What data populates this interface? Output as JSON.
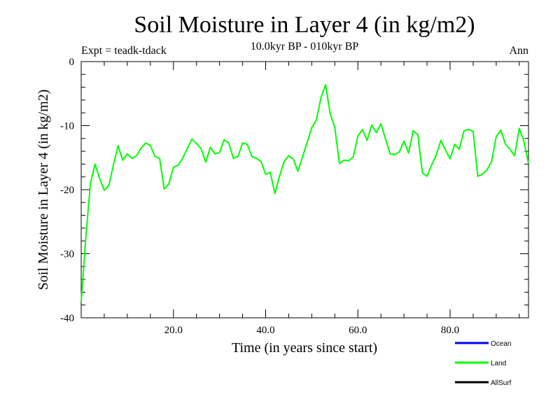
{
  "chart_data": {
    "type": "line",
    "title": "Soil Moisture in Layer 4 (in kg/m2)",
    "subtitle": "10.0kyr BP - 010kyr BP",
    "experiment_label": "Expt = teadk-tdack",
    "season_label": "Ann",
    "xlabel": "Time (in years since start)",
    "ylabel": "Soil Moisture in Layer 4 (in kg/m2)",
    "xlim": [
      0,
      97
    ],
    "ylim": [
      -40,
      0
    ],
    "x_ticks": [
      20,
      40,
      60,
      80
    ],
    "x_tick_labels": [
      "20.0",
      "40.0",
      "60.0",
      "80.0"
    ],
    "y_ticks": [
      -40,
      -30,
      -20,
      -10,
      0
    ],
    "y_tick_labels": [
      "-40",
      "-30",
      "-20",
      "-10",
      "0"
    ],
    "legend": [
      {
        "name": "Ocean",
        "color": "#0000ff"
      },
      {
        "name": "Land",
        "color": "#00ff00"
      },
      {
        "name": "AllSurf",
        "color": "#000000"
      }
    ],
    "series": [
      {
        "name": "Land",
        "color": "#00ff00",
        "x": [
          0,
          1,
          2,
          3,
          4,
          5,
          6,
          7,
          8,
          9,
          10,
          11,
          12,
          13,
          14,
          15,
          16,
          17,
          18,
          19,
          20,
          21,
          22,
          23,
          24,
          25,
          26,
          27,
          28,
          29,
          30,
          31,
          32,
          33,
          34,
          35,
          36,
          37,
          38,
          39,
          40,
          41,
          42,
          43,
          44,
          45,
          46,
          47,
          48,
          49,
          50,
          51,
          52,
          53,
          54,
          55,
          56,
          57,
          58,
          59,
          60,
          61,
          62,
          63,
          64,
          65,
          66,
          67,
          68,
          69,
          70,
          71,
          72,
          73,
          74,
          75,
          76,
          77,
          78,
          79,
          80,
          81,
          82,
          83,
          84,
          85,
          86,
          87,
          88,
          89,
          90,
          91,
          92,
          93,
          94,
          95,
          96,
          97
        ],
        "values": [
          -37.5,
          -27.5,
          -19,
          -16,
          -18.3,
          -20.1,
          -19.3,
          -16.1,
          -13.1,
          -15.4,
          -14.4,
          -15.1,
          -14.7,
          -13.5,
          -12.7,
          -13.1,
          -14.8,
          -15.1,
          -19.9,
          -19.1,
          -16.5,
          -16.2,
          -15.1,
          -13.6,
          -12.1,
          -12.8,
          -13.6,
          -15.7,
          -13.4,
          -14.4,
          -14.2,
          -12.2,
          -12.7,
          -15.1,
          -14.8,
          -12.7,
          -12.9,
          -14.8,
          -15.1,
          -15.6,
          -17.6,
          -17.3,
          -20.6,
          -17.9,
          -15.6,
          -14.7,
          -15.2,
          -17.1,
          -14.9,
          -12.6,
          -10.3,
          -9.1,
          -5.6,
          -3.6,
          -8.1,
          -10.3,
          -15.9,
          -15.4,
          -15.5,
          -14.9,
          -11.6,
          -10.6,
          -12.3,
          -9.9,
          -11.1,
          -9.7,
          -12.1,
          -14.4,
          -14.5,
          -14.1,
          -12.4,
          -14.3,
          -10.8,
          -11.4,
          -17.4,
          -17.9,
          -16.1,
          -14.6,
          -12.3,
          -13.8,
          -15.2,
          -12.9,
          -13.7,
          -10.8,
          -10.6,
          -10.9,
          -17.9,
          -17.6,
          -16.9,
          -15.6,
          -11.7,
          -10.7,
          -12.9,
          -13.7,
          -14.7,
          -10.4,
          -12.4,
          -15.9
        ]
      }
    ]
  }
}
